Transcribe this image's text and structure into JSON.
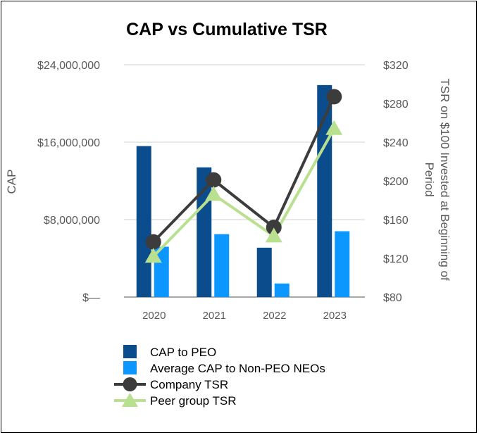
{
  "chart_data": {
    "type": "bar",
    "title": "CAP vs Cumulative TSR",
    "categories": [
      "2020",
      "2021",
      "2022",
      "2023"
    ],
    "ylabel_left": "CAP",
    "ylabel_right": "TSR on $100 Invested at Beginning of Period",
    "ylim_left": [
      0,
      24000000
    ],
    "ylim_right": [
      80,
      320
    ],
    "yticks_left": [
      {
        "value": 0,
        "label": "$—"
      },
      {
        "value": 8000000,
        "label": "$8,000,000"
      },
      {
        "value": 16000000,
        "label": "$16,000,000"
      },
      {
        "value": 24000000,
        "label": "$24,000,000"
      }
    ],
    "yticks_right": [
      {
        "value": 80,
        "label": "$80"
      },
      {
        "value": 120,
        "label": "$120"
      },
      {
        "value": 160,
        "label": "$160"
      },
      {
        "value": 200,
        "label": "$200"
      },
      {
        "value": 240,
        "label": "$240"
      },
      {
        "value": 280,
        "label": "$280"
      },
      {
        "value": 320,
        "label": "$320"
      }
    ],
    "grid": true,
    "legend_position": "bottom",
    "series": [
      {
        "name": "CAP to PEO",
        "kind": "bar",
        "axis": "left",
        "color": "#0b4c8c",
        "values": [
          15600000,
          13400000,
          5100000,
          21900000
        ]
      },
      {
        "name": "Average CAP to Non-PEO NEOs",
        "kind": "bar",
        "axis": "left",
        "color": "#0c96ff",
        "values": [
          5200000,
          6500000,
          1400000,
          6800000
        ]
      },
      {
        "name": "Company TSR",
        "kind": "line",
        "axis": "right",
        "color": "#3c3c3c",
        "marker": "circle",
        "values": [
          137,
          201,
          152,
          287
        ]
      },
      {
        "name": "Peer group TSR",
        "kind": "line",
        "axis": "right",
        "color": "#b9e08e",
        "marker": "triangle",
        "values": [
          122,
          186,
          143,
          254
        ]
      }
    ]
  }
}
